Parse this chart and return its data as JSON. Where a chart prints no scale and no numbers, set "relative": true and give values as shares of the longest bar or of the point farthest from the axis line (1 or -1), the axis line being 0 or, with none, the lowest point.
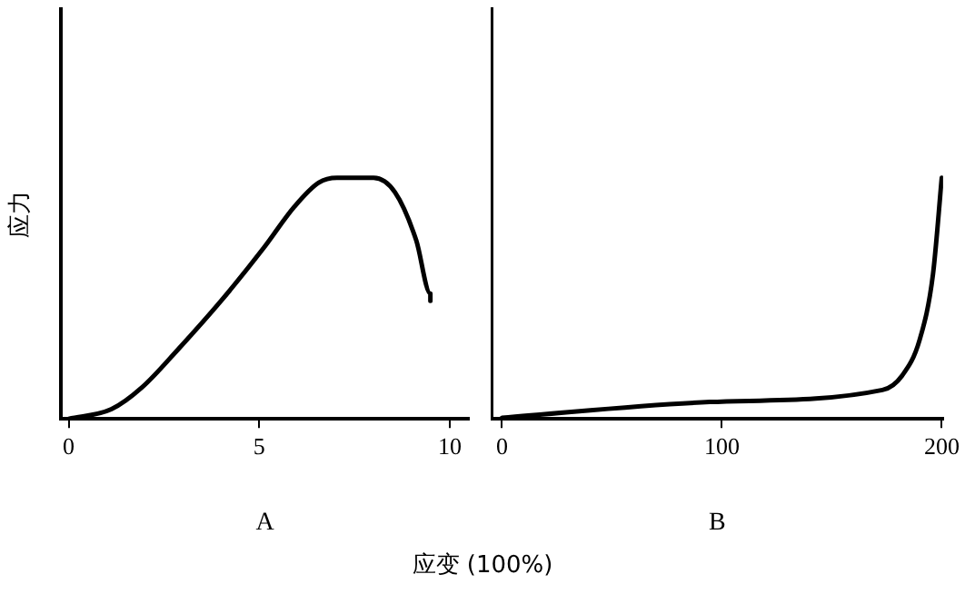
{
  "chart_data": [
    {
      "type": "line",
      "xlabel": "A",
      "ylabel": "应力",
      "annotations": [
        "应变 (100%)"
      ],
      "relative": true,
      "tick_labels": "x",
      "xlim": [
        -0.2,
        10.5
      ],
      "xticks": [
        0,
        5,
        10
      ],
      "grid": false,
      "legend": false,
      "marker": "none",
      "line_style": "solid",
      "series": [
        {
          "color": "#000000",
          "x": [
            0,
            1.12,
            1.92,
            2.88,
            4.0,
            5.12,
            5.92,
            6.56,
            7.04,
            8.0,
            8.56,
            9.12,
            9.49,
            9.49
          ],
          "values": [
            0,
            0.04,
            0.13,
            0.29,
            0.49,
            0.71,
            0.88,
            0.98,
            1.0,
            1.0,
            0.94,
            0.74,
            0.52,
            0.49
          ]
        }
      ]
    },
    {
      "type": "line",
      "xlabel": "B",
      "relative": true,
      "tick_labels": "x",
      "xlim": [
        -4.8,
        200.6
      ],
      "xticks": [
        0,
        100,
        200
      ],
      "grid": false,
      "legend": false,
      "marker": "none",
      "line_style": "solid",
      "series": [
        {
          "color": "#000000",
          "x": [
            0,
            94.5,
            173,
            182,
            190,
            196,
            200
          ],
          "values": [
            0.005,
            0.07,
            0.12,
            0.18,
            0.33,
            0.6,
            1.0
          ]
        }
      ]
    }
  ]
}
